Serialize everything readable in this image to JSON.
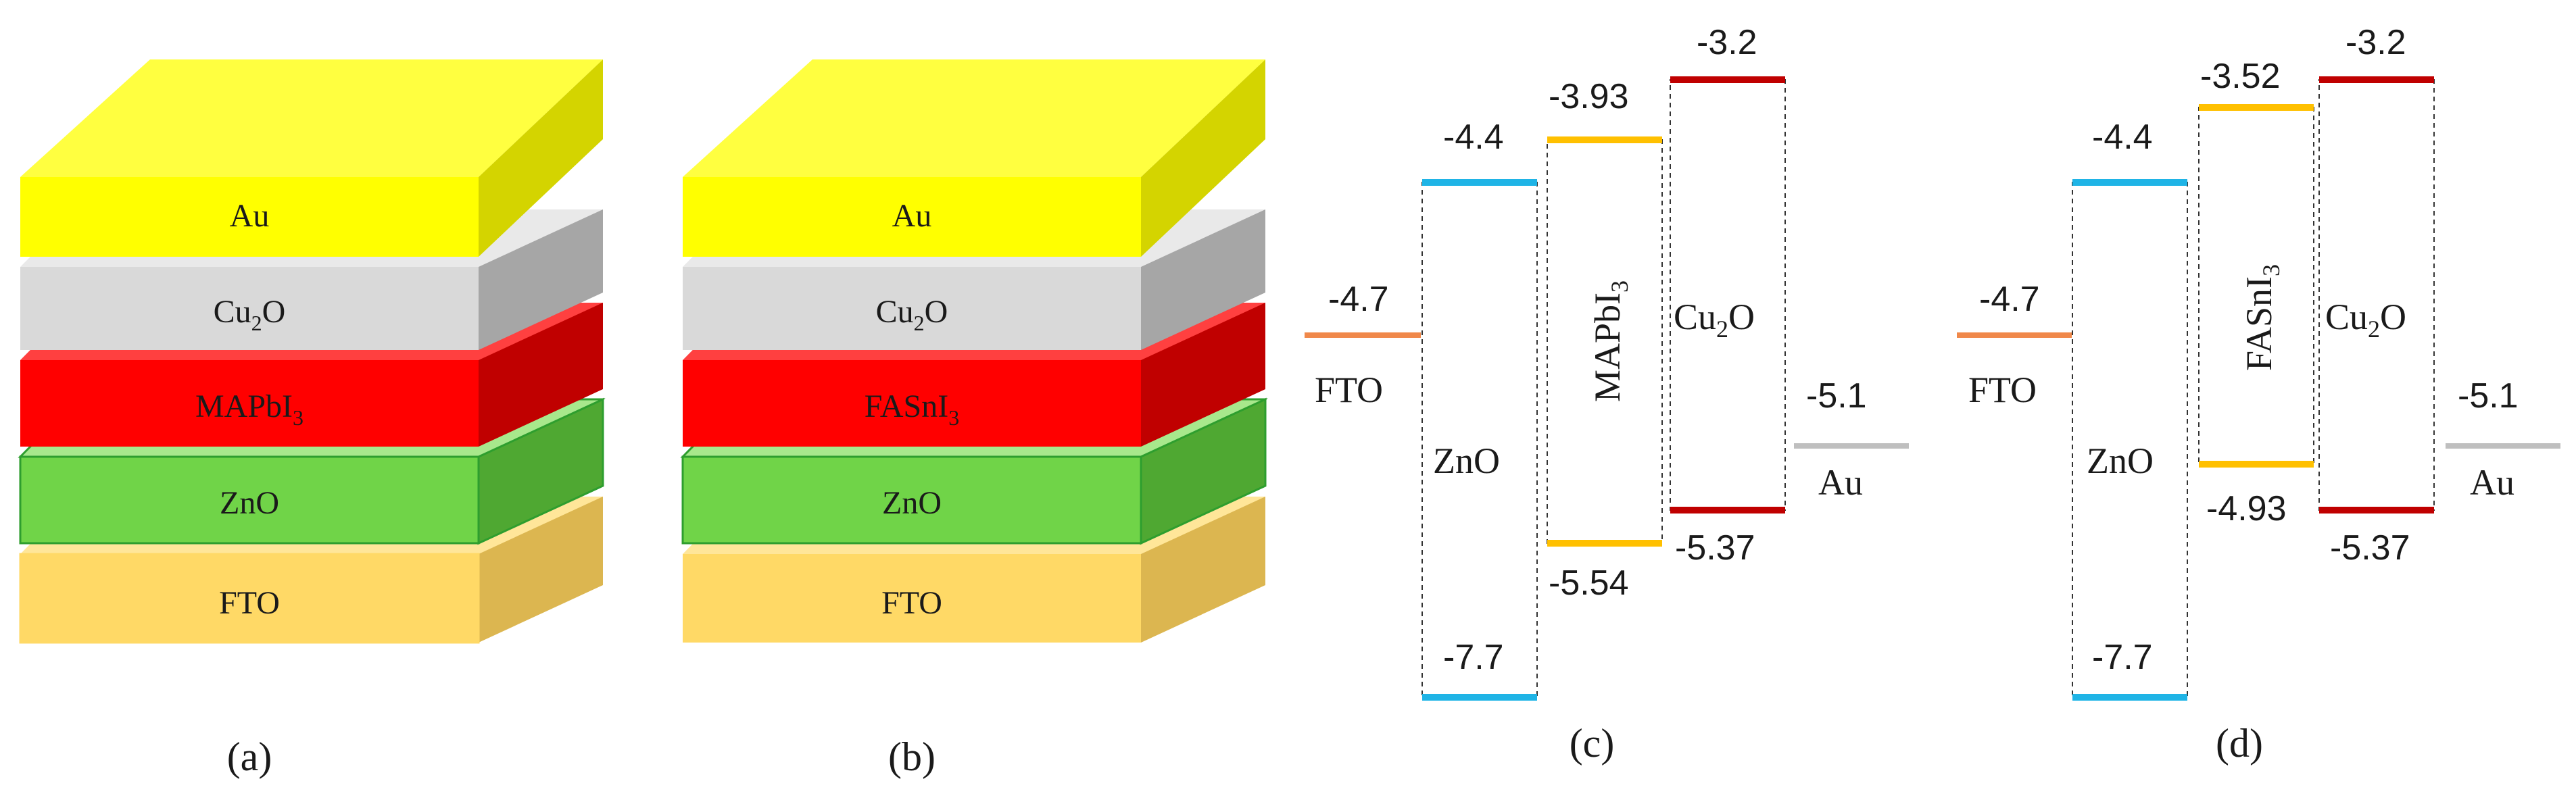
{
  "panels": {
    "a": {
      "caption": "(a)",
      "layers": [
        {
          "name": "Au",
          "sub": "",
          "suffix": "",
          "front": "#ffff00",
          "top": "#ffff40",
          "side": "#d4d400",
          "edge": "#ffff00",
          "text_color": "#2a2a2a"
        },
        {
          "name": "Cu",
          "sub": "2",
          "suffix": "O",
          "front": "#d9d9d9",
          "top": "#e9e9e9",
          "side": "#a6a6a6",
          "edge": "#d9d9d9",
          "text_color": "#2a2a2a"
        },
        {
          "name": "MAPbI",
          "sub": "3",
          "suffix": "",
          "front": "#ff0000",
          "top": "#ff4040",
          "side": "#c00000",
          "edge": "#ff0000",
          "text_color": "#ffffff"
        },
        {
          "name": "ZnO",
          "sub": "",
          "suffix": "",
          "front": "#70d448",
          "top": "#a8e88c",
          "side": "#4fa832",
          "edge": "#2e9e2e",
          "text_color": "#2a2a2a"
        },
        {
          "name": "FTO",
          "sub": "",
          "suffix": "",
          "front": "#ffd966",
          "top": "#ffe699",
          "side": "#dcb650",
          "edge": "#ffd966",
          "text_color": "#2a2a2a"
        }
      ]
    },
    "b": {
      "caption": "(b)",
      "layers": [
        {
          "name": "Au",
          "sub": "",
          "suffix": "",
          "front": "#ffff00",
          "top": "#ffff40",
          "side": "#d4d400",
          "edge": "#ffff00",
          "text_color": "#2a2a2a"
        },
        {
          "name": "Cu",
          "sub": "2",
          "suffix": "O",
          "front": "#d9d9d9",
          "top": "#e9e9e9",
          "side": "#a6a6a6",
          "edge": "#d9d9d9",
          "text_color": "#2a2a2a"
        },
        {
          "name": "FASnI",
          "sub": "3",
          "suffix": "",
          "front": "#ff0000",
          "top": "#ff4040",
          "side": "#c00000",
          "edge": "#ff0000",
          "text_color": "#ffffff"
        },
        {
          "name": "ZnO",
          "sub": "",
          "suffix": "",
          "front": "#70d448",
          "top": "#a8e88c",
          "side": "#4fa832",
          "edge": "#2e9e2e",
          "text_color": "#2a2a2a"
        },
        {
          "name": "FTO",
          "sub": "",
          "suffix": "",
          "front": "#ffd966",
          "top": "#ffe699",
          "side": "#dcb650",
          "edge": "#ffd966",
          "text_color": "#2a2a2a"
        }
      ]
    },
    "c": {
      "caption": "(c)",
      "fto": {
        "label": "FTO",
        "value": "-4.7",
        "color": "#f0884a"
      },
      "zno": {
        "label": "ZnO",
        "top": "-4.4",
        "bottom": "-7.7",
        "color": "#1fb4e6"
      },
      "absorber": {
        "name": "MAPbI",
        "sub": "3",
        "top": "-3.93",
        "bottom": "-5.54",
        "color": "#ffc000"
      },
      "cu2o": {
        "name": "Cu",
        "sub": "2",
        "suffix": "O",
        "top": "-3.2",
        "bottom": "-5.37",
        "color": "#c00000"
      },
      "au": {
        "label": "Au",
        "value": "-5.1",
        "color": "#bfbfbf"
      }
    },
    "d": {
      "caption": "(d)",
      "fto": {
        "label": "FTO",
        "value": "-4.7",
        "color": "#f0884a"
      },
      "zno": {
        "label": "ZnO",
        "top": "-4.4",
        "bottom": "-7.7",
        "color": "#1fb4e6"
      },
      "absorber": {
        "name": "FASnI",
        "sub": "3",
        "top": "-3.52",
        "bottom": "-4.93",
        "color": "#ffc000"
      },
      "cu2o": {
        "name": "Cu",
        "sub": "2",
        "suffix": "O",
        "top": "-3.2",
        "bottom": "-5.37",
        "color": "#c00000"
      },
      "au": {
        "label": "Au",
        "value": "-5.1",
        "color": "#bfbfbf"
      }
    }
  }
}
